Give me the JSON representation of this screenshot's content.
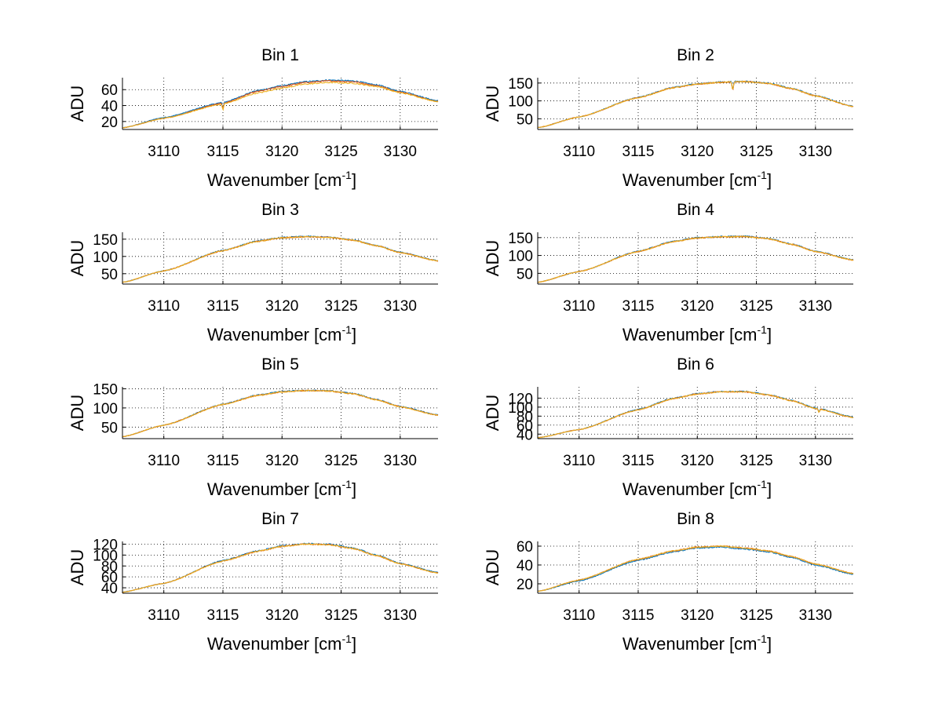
{
  "chart_data": {
    "type": "line",
    "x_axis": {
      "label_prefix": "Wavenumber [cm",
      "label_superscript": "-1",
      "label_suffix": "]",
      "xlim": [
        3106.5,
        3133.2
      ],
      "ticks": [
        3110,
        3115,
        3120,
        3125,
        3130
      ],
      "tick_labels": [
        "3110",
        "3115",
        "3120",
        "3125",
        "3130"
      ]
    },
    "y_label": "ADU",
    "grid": true,
    "series_colors": [
      "#0072BD",
      "#D95319",
      "#EDB120"
    ],
    "panels": [
      {
        "title": "Bin 1",
        "ylim": [
          10,
          75
        ],
        "yticks": [
          20,
          40,
          60
        ],
        "ytick_labels": [
          "20",
          "40",
          "60"
        ],
        "x": [
          3106.5,
          3110,
          3115,
          3118,
          3120,
          3122,
          3124,
          3126,
          3128,
          3130,
          3133.2
        ],
        "series": [
          {
            "values": [
              12,
              25,
              44,
              59,
              65,
              70,
              72,
              71,
              66,
              58,
              46
            ]
          },
          {
            "values": [
              12,
              24,
              43,
              58,
              64,
              69,
              71,
              70,
              65,
              57,
              45
            ]
          },
          {
            "values": [
              12,
              24,
              42,
              56,
              62,
              67,
              69,
              68,
              64,
              56,
              45
            ]
          }
        ],
        "features": [
          {
            "x": 3115,
            "depth": 8
          }
        ]
      },
      {
        "title": "Bin 2",
        "ylim": [
          20,
          165
        ],
        "yticks": [
          50,
          100,
          150
        ],
        "ytick_labels": [
          "50",
          "100",
          "150"
        ],
        "x": [
          3106.5,
          3110,
          3115,
          3118,
          3120,
          3122,
          3124,
          3126,
          3128,
          3130,
          3133.2
        ],
        "series": [
          {
            "values": [
              25,
              55,
              110,
              138,
              148,
              153,
              155,
              150,
              135,
              115,
              85
            ]
          },
          {
            "values": [
              25,
              55,
              109,
              137,
              147,
              152,
              154,
              149,
              134,
              114,
              84
            ]
          },
          {
            "values": [
              25,
              55,
              109,
              137,
              147,
              152,
              154,
              149,
              134,
              114,
              84
            ]
          }
        ],
        "features": [
          {
            "x": 3123,
            "depth": 25
          }
        ]
      },
      {
        "title": "Bin 3",
        "ylim": [
          20,
          170
        ],
        "yticks": [
          50,
          100,
          150
        ],
        "ytick_labels": [
          "50",
          "100",
          "150"
        ],
        "x": [
          3106.5,
          3110,
          3115,
          3118,
          3120,
          3122,
          3124,
          3126,
          3128,
          3130,
          3133.2
        ],
        "series": [
          {
            "values": [
              25,
              58,
              118,
              145,
              155,
              158,
              156,
              148,
              132,
              112,
              88
            ]
          },
          {
            "values": [
              25,
              58,
              117,
              144,
              154,
              157,
              155,
              147,
              131,
              111,
              87
            ]
          },
          {
            "values": [
              25,
              58,
              117,
              144,
              154,
              157,
              155,
              147,
              131,
              111,
              87
            ]
          }
        ],
        "features": []
      },
      {
        "title": "Bin 4",
        "ylim": [
          20,
          165
        ],
        "yticks": [
          50,
          100,
          150
        ],
        "ytick_labels": [
          "50",
          "100",
          "150"
        ],
        "x": [
          3106.5,
          3110,
          3115,
          3118,
          3120,
          3122,
          3124,
          3126,
          3128,
          3130,
          3133.2
        ],
        "series": [
          {
            "values": [
              25,
              55,
              112,
              140,
              150,
              153,
              154,
              148,
              132,
              112,
              88
            ]
          },
          {
            "values": [
              25,
              55,
              111,
              139,
              149,
              152,
              153,
              147,
              131,
              111,
              87
            ]
          },
          {
            "values": [
              25,
              55,
              111,
              139,
              149,
              152,
              153,
              147,
              131,
              111,
              87
            ]
          }
        ],
        "features": []
      },
      {
        "title": "Bin 5",
        "ylim": [
          20,
          155
        ],
        "yticks": [
          50,
          100,
          150
        ],
        "ytick_labels": [
          "50",
          "100",
          "150"
        ],
        "x": [
          3106.5,
          3110,
          3115,
          3118,
          3120,
          3122,
          3124,
          3126,
          3128,
          3130,
          3133.2
        ],
        "series": [
          {
            "values": [
              25,
              55,
              110,
              134,
              143,
              146,
              145,
              138,
              122,
              104,
              82
            ]
          },
          {
            "values": [
              25,
              55,
              109,
              133,
              142,
              145,
              144,
              137,
              121,
              103,
              81
            ]
          },
          {
            "values": [
              25,
              55,
              109,
              133,
              142,
              145,
              144,
              137,
              121,
              103,
              81
            ]
          }
        ],
        "features": []
      },
      {
        "title": "Bin 6",
        "ylim": [
          30,
          145
        ],
        "yticks": [
          40,
          60,
          80,
          100,
          120
        ],
        "ytick_labels": [
          "40",
          "60",
          "80",
          "100",
          "120"
        ],
        "x": [
          3106.5,
          3110,
          3115,
          3118,
          3120,
          3122,
          3124,
          3126,
          3128,
          3130,
          3133.2
        ],
        "series": [
          {
            "values": [
              32,
              50,
              95,
              120,
              130,
              135,
              135,
              128,
              115,
              98,
              78
            ]
          },
          {
            "values": [
              32,
              50,
              94,
              119,
              129,
              134,
              134,
              127,
              114,
              97,
              77
            ]
          },
          {
            "values": [
              32,
              50,
              94,
              119,
              129,
              134,
              134,
              127,
              114,
              97,
              77
            ]
          }
        ],
        "features": [
          {
            "x": 3130.3,
            "depth": 8
          }
        ]
      },
      {
        "title": "Bin 7",
        "ylim": [
          30,
          125
        ],
        "yticks": [
          40,
          60,
          80,
          100,
          120
        ],
        "ytick_labels": [
          "40",
          "60",
          "80",
          "100",
          "120"
        ],
        "x": [
          3106.5,
          3110,
          3115,
          3118,
          3120,
          3122,
          3124,
          3126,
          3128,
          3130,
          3133.2
        ],
        "series": [
          {
            "values": [
              32,
              48,
              90,
              108,
              117,
              121,
              120,
              113,
              100,
              85,
              68
            ]
          },
          {
            "values": [
              32,
              48,
              89,
              107,
              116,
              120,
              119,
              112,
              99,
              84,
              67
            ]
          },
          {
            "values": [
              32,
              48,
              89,
              107,
              116,
              120,
              119,
              112,
              99,
              84,
              67
            ]
          }
        ],
        "features": []
      },
      {
        "title": "Bin 8",
        "ylim": [
          10,
          65
        ],
        "yticks": [
          20,
          40,
          60
        ],
        "ytick_labels": [
          "20",
          "40",
          "60"
        ],
        "x": [
          3106.5,
          3110,
          3115,
          3118,
          3120,
          3122,
          3124,
          3126,
          3128,
          3130,
          3133.2
        ],
        "series": [
          {
            "values": [
              12,
              23,
              45,
              54,
              58,
              59,
              57,
              54,
              48,
              40,
              30
            ]
          },
          {
            "values": [
              12,
              24,
              46,
              55,
              59,
              60,
              58,
              55,
              49,
              41,
              31
            ]
          },
          {
            "values": [
              12,
              24,
              46,
              55,
              59,
              60,
              58,
              55,
              49,
              41,
              31
            ]
          }
        ],
        "features": []
      }
    ]
  }
}
